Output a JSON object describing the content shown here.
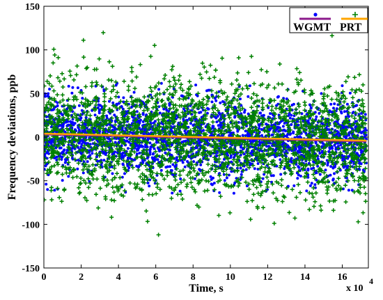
{
  "chart_data": {
    "type": "scatter",
    "title": "",
    "xlabel": "Time, s",
    "ylabel": "Frequency deviations, ppb",
    "x_multiplier_label": "x 10",
    "x_multiplier_exponent": "4",
    "xlim": [
      0,
      17.4
    ],
    "ylim": [
      -150,
      150
    ],
    "x_ticks": [
      0,
      2,
      4,
      6,
      8,
      10,
      12,
      14,
      16
    ],
    "y_ticks": [
      -150,
      -100,
      -50,
      0,
      50,
      100,
      150
    ],
    "x_tick_labels": [
      "0",
      "2",
      "4",
      "6",
      "8",
      "10",
      "12",
      "14",
      "16"
    ],
    "y_tick_labels": [
      "-150",
      "-100",
      "-50",
      "0",
      "50",
      "100",
      "150"
    ],
    "grid": false,
    "legend_position": "top-right",
    "series": [
      {
        "name": "WGMT",
        "marker": "dot",
        "color": "#0000ff",
        "fit_color": "#8b1a8b",
        "x_range": [
          0,
          17.3
        ],
        "y_center_start": 3,
        "y_center_end": -5,
        "y_spread_sd": 22,
        "y_min": -65,
        "y_max": 65,
        "approx_points": 2600,
        "fit_line": {
          "x": [
            0,
            17.3
          ],
          "y": [
            3,
            -5
          ]
        }
      },
      {
        "name": "PRT",
        "marker": "plus",
        "color": "#008000",
        "fit_color": "#ffa500",
        "x_range": [
          0,
          17.3
        ],
        "y_center_start": 3,
        "y_center_end": -5,
        "y_spread_sd": 33,
        "y_min": -135,
        "y_max": 122,
        "approx_points": 2400,
        "fit_line": {
          "x": [
            0,
            17.3
          ],
          "y": [
            4,
            -4
          ]
        }
      }
    ]
  }
}
